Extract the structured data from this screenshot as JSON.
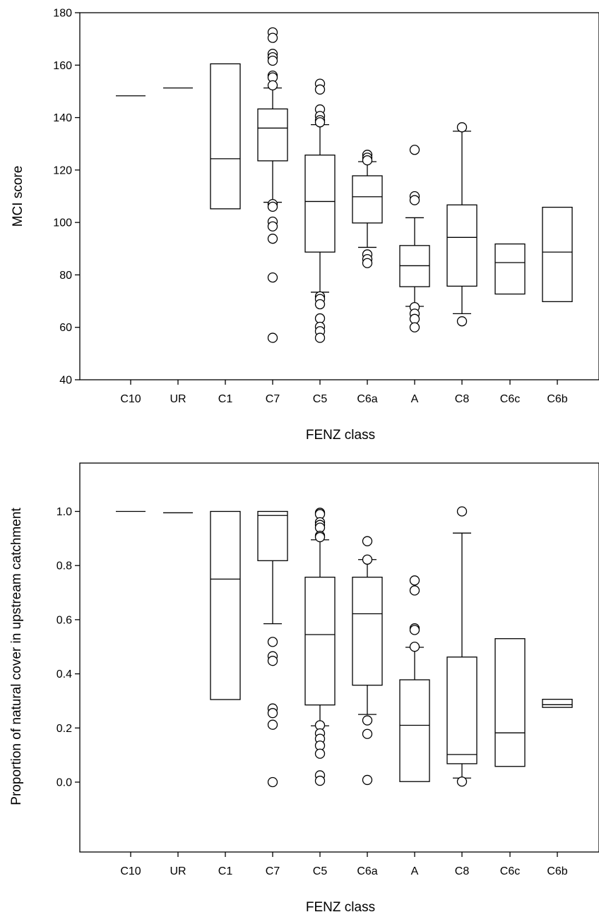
{
  "chart_data": [
    {
      "type": "box",
      "xlabel": "FENZ class",
      "ylabel": "MCI score",
      "ylim": [
        40,
        180
      ],
      "yticks": [
        40,
        60,
        80,
        100,
        120,
        140,
        160,
        180
      ],
      "categories": [
        "C10",
        "UR",
        "C1",
        "C7",
        "C5",
        "C6a",
        "A",
        "C8",
        "C6c",
        "C6b"
      ],
      "grid": false,
      "boxes": [
        {
          "category": "C10",
          "median": 148.3
        },
        {
          "category": "UR",
          "median": 151.3
        },
        {
          "category": "C1",
          "q1": 105.2,
          "median": 124.3,
          "q3": 160.5
        },
        {
          "category": "C7",
          "q1": 123.5,
          "median": 136.0,
          "q3": 143.3,
          "whisker_low": 107.7,
          "whisker_high": 151.3,
          "outliers": [
            172.5,
            170.4,
            164.3,
            163.0,
            161.7,
            156.0,
            155.3,
            152.3,
            107.0,
            106.0,
            100.3,
            98.5,
            93.8,
            79.0,
            56.0
          ]
        },
        {
          "category": "C5",
          "q1": 88.7,
          "median": 108.0,
          "q3": 125.7,
          "whisker_low": 73.4,
          "whisker_high": 137.3,
          "outliers": [
            152.9,
            150.7,
            143.1,
            140.6,
            139.0,
            138.2,
            71.8,
            70.8,
            68.8,
            63.4,
            60.2,
            58.5,
            56.0
          ]
        },
        {
          "category": "C6a",
          "q1": 99.8,
          "median": 109.8,
          "q3": 117.8,
          "whisker_low": 90.5,
          "whisker_high": 123.2,
          "outliers": [
            125.8,
            124.7,
            123.7,
            87.8,
            86.0,
            84.5
          ]
        },
        {
          "category": "A",
          "q1": 75.5,
          "median": 83.5,
          "q3": 91.2,
          "whisker_low": 68.0,
          "whisker_high": 101.8,
          "outliers": [
            127.7,
            110.0,
            108.5,
            67.7,
            65.2,
            63.2,
            60.0
          ]
        },
        {
          "category": "C8",
          "q1": 75.7,
          "median": 94.3,
          "q3": 106.7,
          "whisker_low": 65.2,
          "whisker_high": 134.8,
          "outliers": [
            136.3,
            62.3
          ]
        },
        {
          "category": "C6c",
          "q1": 72.7,
          "median": 84.7,
          "q3": 91.8
        },
        {
          "category": "C6b",
          "q1": 69.8,
          "median": 88.7,
          "q3": 105.8
        }
      ]
    },
    {
      "type": "box",
      "xlabel": "FENZ class",
      "ylabel": "Proportion of natural cover in upstream catchment",
      "ylim": [
        -0.2,
        1.1
      ],
      "yticks": [
        "0.0",
        "0.2",
        "0.4",
        "0.6",
        "0.8",
        "1.0"
      ],
      "categories": [
        "C10",
        "UR",
        "C1",
        "C7",
        "C5",
        "C6a",
        "A",
        "C8",
        "C6c",
        "C6b"
      ],
      "grid": false,
      "boxes": [
        {
          "category": "C10",
          "median": 1.0
        },
        {
          "category": "UR",
          "median": 0.995
        },
        {
          "category": "C1",
          "q1": 0.305,
          "median": 0.75,
          "q3": 1.0
        },
        {
          "category": "C7",
          "q1": 0.818,
          "median": 0.985,
          "q3": 1.0,
          "whisker_low": 0.585,
          "outliers": [
            0.518,
            0.465,
            0.448,
            0.272,
            0.255,
            0.212,
            0.0
          ]
        },
        {
          "category": "C5",
          "q1": 0.285,
          "median": 0.545,
          "q3": 0.757,
          "whisker_low": 0.208,
          "whisker_high": 0.895,
          "outliers": [
            0.995,
            0.99,
            0.96,
            0.95,
            0.94,
            0.91,
            0.905,
            0.21,
            0.18,
            0.16,
            0.135,
            0.105,
            0.025,
            0.005
          ]
        },
        {
          "category": "C6a",
          "q1": 0.358,
          "median": 0.622,
          "q3": 0.757,
          "whisker_low": 0.25,
          "whisker_high": 0.822,
          "outliers": [
            0.89,
            0.822,
            0.228,
            0.178,
            0.008
          ]
        },
        {
          "category": "A",
          "q1": 0.002,
          "median": 0.21,
          "q3": 0.378,
          "whisker_high": 0.498,
          "outliers": [
            0.745,
            0.708,
            0.568,
            0.562,
            0.5
          ]
        },
        {
          "category": "C8",
          "q1": 0.068,
          "median": 0.102,
          "q3": 0.462,
          "whisker_low": 0.015,
          "whisker_high": 0.92,
          "outliers": [
            1.0,
            0.002
          ]
        },
        {
          "category": "C6c",
          "q1": 0.058,
          "median": 0.182,
          "q3": 0.53
        },
        {
          "category": "C6b",
          "q1": 0.276,
          "median": 0.286,
          "q3": 0.306
        }
      ]
    }
  ]
}
